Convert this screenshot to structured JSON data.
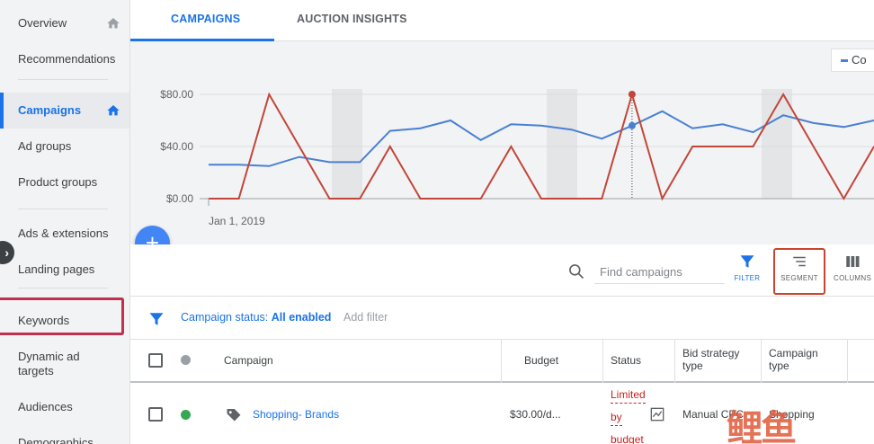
{
  "sidebar": {
    "items": [
      {
        "label": "Overview"
      },
      {
        "label": "Recommendations"
      },
      {
        "label": "Campaigns"
      },
      {
        "label": "Ad groups"
      },
      {
        "label": "Product groups"
      },
      {
        "label": "Ads & extensions"
      },
      {
        "label": "Landing pages"
      },
      {
        "label": "Keywords"
      },
      {
        "label": "Dynamic ad targets"
      },
      {
        "label": "Audiences"
      },
      {
        "label": "Demographics"
      }
    ],
    "active": "Campaigns",
    "highlighted": "Keywords"
  },
  "tabs": [
    {
      "label": "CAMPAIGNS",
      "active": true
    },
    {
      "label": "AUCTION INSIGHTS",
      "active": false
    }
  ],
  "legend": {
    "label": "Co"
  },
  "chart_data": {
    "type": "line",
    "x_start_label": "Jan 1, 2019",
    "y_ticks": [
      "$80.00",
      "$40.00",
      "$0.00"
    ],
    "ylim": [
      0,
      80
    ],
    "series": [
      {
        "color": "#4a80d4",
        "values": [
          26,
          26,
          25,
          32,
          28,
          28,
          52,
          54,
          60,
          45,
          57,
          56,
          53,
          46,
          56,
          67,
          54,
          57,
          51,
          64,
          58,
          55,
          60
        ]
      },
      {
        "color": "#c3463a",
        "values": [
          0,
          0,
          80,
          40,
          0,
          0,
          40,
          0,
          0,
          0,
          40,
          0,
          0,
          0,
          80,
          0,
          40,
          40,
          40,
          80,
          40,
          0,
          40
        ]
      }
    ],
    "grid": true
  },
  "toolbar": {
    "search_placeholder": "Find campaigns",
    "filter_label": "FILTER",
    "segment_label": "SEGMENT",
    "columns_label": "COLUMNS"
  },
  "filterbar": {
    "status_prefix": "Campaign status: ",
    "status_value": "All enabled",
    "add_filter": "Add filter"
  },
  "table": {
    "headers": {
      "campaign": "Campaign",
      "budget": "Budget",
      "status": "Status",
      "bid_strategy": "Bid strategy type",
      "campaign_type": "Campaign type"
    },
    "rows": [
      {
        "campaign": "Shopping- Brands",
        "budget": "$30.00/d...",
        "status_lines": [
          "Limited",
          "by",
          "budget"
        ],
        "bid_strategy": "Manual CPC",
        "campaign_type": "Shopping"
      }
    ]
  },
  "watermark": "鲤鱼"
}
